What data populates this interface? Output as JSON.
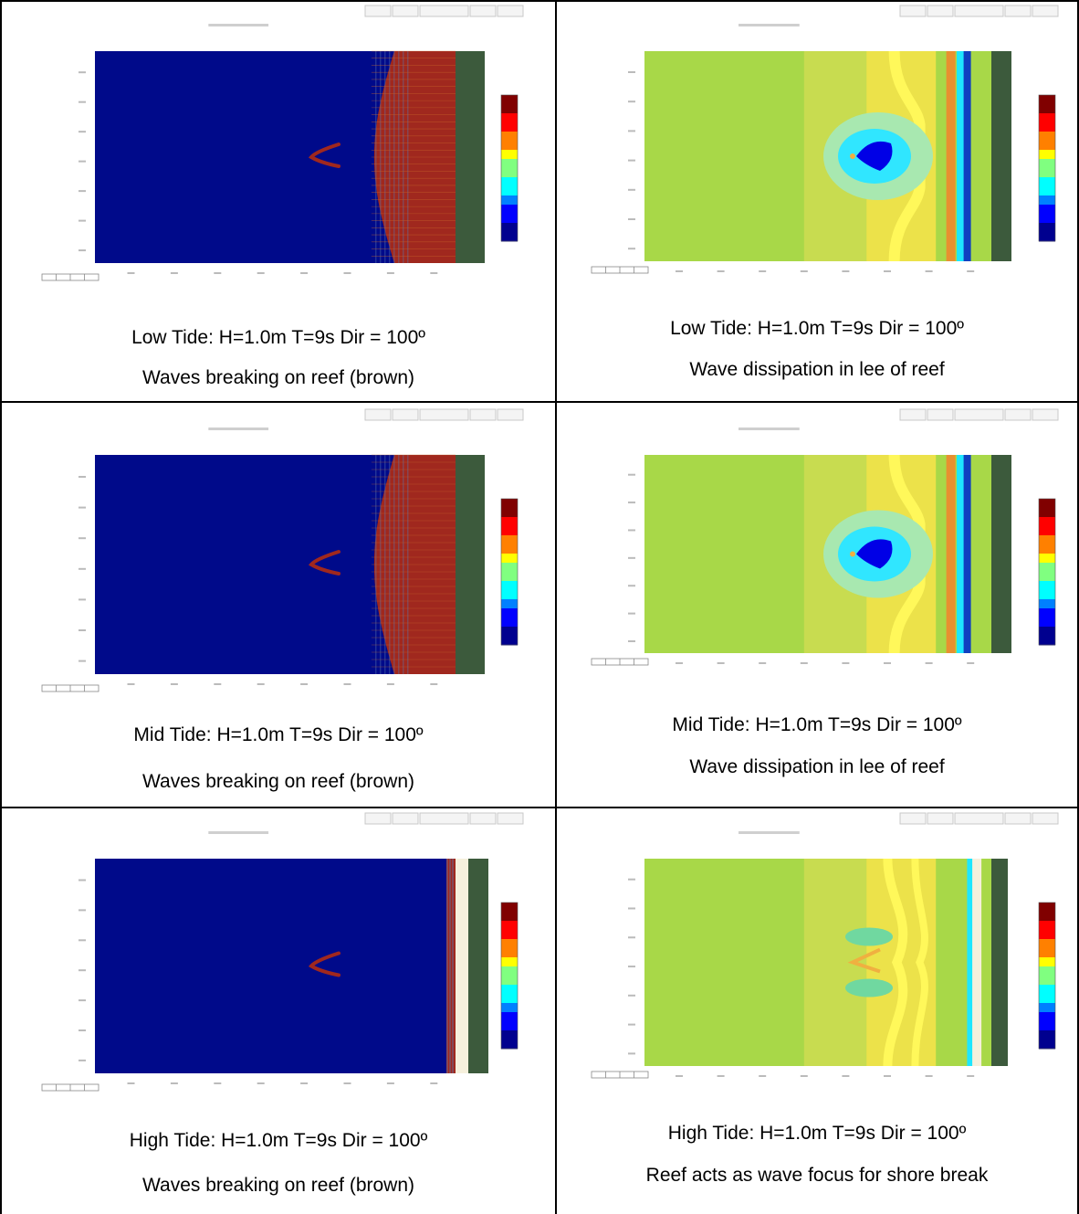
{
  "panels": [
    {
      "kind": "breaking",
      "tide": "Low",
      "line1": "Low Tide: H=1.0m  T=9s Dir = 100º",
      "line2": "Waves breaking on reef (brown)"
    },
    {
      "kind": "dissipation",
      "tide": "Low",
      "line1": "Low Tide: H=1.0m  T=9s Dir = 100º",
      "line2": "Wave dissipation in lee of reef"
    },
    {
      "kind": "breaking",
      "tide": "Mid",
      "line1": "Mid Tide: H=1.0m  T=9s Dir = 100º",
      "line2": "Waves breaking on reef (brown)"
    },
    {
      "kind": "dissipation",
      "tide": "Mid",
      "line1": "Mid Tide: H=1.0m  T=9s Dir = 100º",
      "line2": "Wave dissipation in lee of reef"
    },
    {
      "kind": "breaking",
      "tide": "High",
      "line1": "High Tide: H=1.0m  T=9s Dir = 100º",
      "line2": "Waves breaking on reef (brown)"
    },
    {
      "kind": "focus",
      "tide": "High",
      "line1": "High Tide: H=1.0m  T=9s Dir = 100º",
      "line2": "Reef acts as wave focus for shore break"
    }
  ],
  "colors": {
    "deep_blue": "#000a8a",
    "reef_brown": "#a0281e",
    "land_green": "#3c5a3c",
    "field_green": "#a8d848",
    "field_yellow_green": "#c8dc50",
    "field_yellow": "#ece24a",
    "sand": "#f6f0dc",
    "cyan": "#1ee6ff",
    "border": "#000000"
  }
}
